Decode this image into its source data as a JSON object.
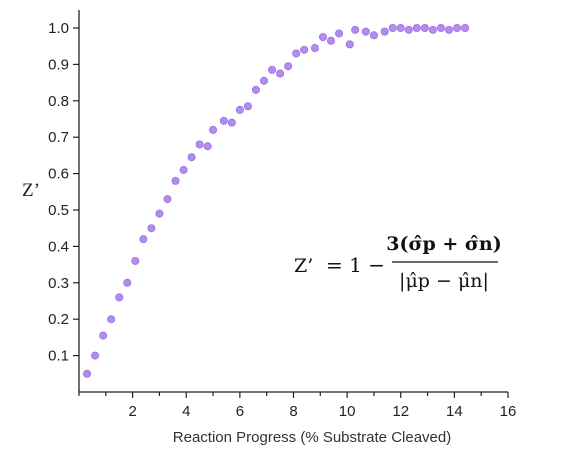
{
  "chart_data": {
    "type": "scatter",
    "title": "",
    "xlabel": "Reaction Progress (% Substrate Cleaved)",
    "ylabel": "Z’",
    "xlim": [
      0,
      16
    ],
    "ylim": [
      0,
      1.0
    ],
    "x_ticks": [
      "2",
      "4",
      "6",
      "8",
      "10",
      "12",
      "14",
      "16"
    ],
    "y_ticks": [
      "0.1",
      "0.2",
      "0.3",
      "0.4",
      "0.5",
      "0.6",
      "0.7",
      "0.8",
      "0.9",
      "1.0"
    ],
    "grid": false,
    "point_color": "#b48cf0",
    "point_edge_color": "#9b6fe0",
    "annotation": {
      "lhs": "Z’",
      "eq": "= 1 −",
      "numerator": "3(σ̂p + σ̂n)",
      "denominator": "|μ̂p − μ̂n|"
    },
    "series": [
      {
        "x": [
          0.3,
          0.6,
          0.9,
          1.2,
          1.5,
          1.8,
          2.1,
          2.4,
          2.7,
          3.0,
          3.3,
          3.6,
          3.9,
          4.2,
          4.5,
          4.8,
          5.0,
          5.4,
          5.7,
          6.0,
          6.3,
          6.6,
          6.9,
          7.2,
          7.5,
          7.8,
          8.1,
          8.4,
          8.8,
          9.1,
          9.4,
          9.7,
          10.1,
          10.3,
          10.7,
          11.0,
          11.4,
          11.7,
          12.0,
          12.3,
          12.6,
          12.9,
          13.2,
          13.5,
          13.8,
          14.1,
          14.4
        ],
        "y": [
          0.05,
          0.1,
          0.155,
          0.2,
          0.26,
          0.3,
          0.36,
          0.42,
          0.45,
          0.49,
          0.53,
          0.58,
          0.61,
          0.645,
          0.68,
          0.675,
          0.72,
          0.745,
          0.74,
          0.775,
          0.785,
          0.83,
          0.855,
          0.885,
          0.875,
          0.895,
          0.93,
          0.94,
          0.945,
          0.975,
          0.965,
          0.985,
          0.955,
          0.995,
          0.99,
          0.98,
          0.99,
          1.0,
          1.0,
          0.995,
          1.0,
          1.0,
          0.995,
          1.0,
          0.995,
          1.0,
          1.0
        ]
      }
    ]
  }
}
